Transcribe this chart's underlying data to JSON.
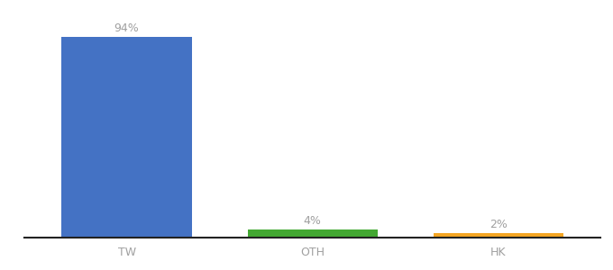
{
  "categories": [
    "TW",
    "OTH",
    "HK"
  ],
  "values": [
    94,
    4,
    2
  ],
  "bar_colors": [
    "#4472c4",
    "#43a832",
    "#f5a623"
  ],
  "labels": [
    "94%",
    "4%",
    "2%"
  ],
  "ylim": [
    0,
    105
  ],
  "background_color": "#ffffff",
  "label_fontsize": 9,
  "tick_fontsize": 9,
  "bar_width": 0.7,
  "label_color": "#a0a0a0",
  "tick_color": "#a0a0a0",
  "spine_color": "#222222",
  "x_positions": [
    0,
    1,
    2
  ],
  "xlim": [
    -0.55,
    2.55
  ]
}
